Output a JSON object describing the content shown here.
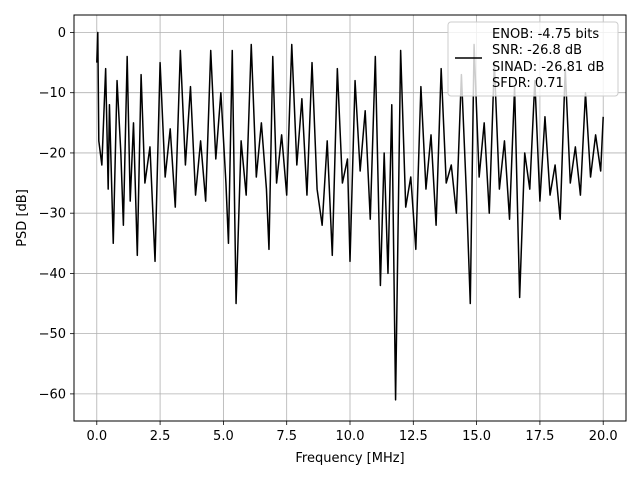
{
  "chart_data": {
    "type": "line",
    "title": "",
    "xlabel": "Frequency [MHz]",
    "ylabel": "PSD [dB]",
    "xlim": [
      -0.9,
      20.9
    ],
    "ylim": [
      -64.5,
      2.9
    ],
    "xticks": [
      0.0,
      2.5,
      5.0,
      7.5,
      10.0,
      12.5,
      15.0,
      17.5,
      20.0
    ],
    "xtick_labels": [
      "0.0",
      "2.5",
      "5.0",
      "7.5",
      "10.0",
      "12.5",
      "15.0",
      "17.5",
      "20.0"
    ],
    "yticks": [
      0,
      -10,
      -20,
      -30,
      -40,
      -50,
      -60
    ],
    "ytick_labels": [
      "0",
      "−10",
      "−20",
      "−30",
      "−40",
      "−50",
      "−60"
    ],
    "grid": true,
    "legend_position": "top-right",
    "legend_entries": [
      "ENOB: -4.75 bits",
      "SNR: -26.8 dB",
      "SINAD: -26.81 dB",
      "SFDR: 0.71"
    ],
    "series": [
      {
        "color": "#000000",
        "x": [
          0.0,
          0.04,
          0.08,
          0.2,
          0.35,
          0.45,
          0.5,
          0.65,
          0.8,
          0.95,
          1.05,
          1.2,
          1.32,
          1.45,
          1.6,
          1.75,
          1.9,
          2.1,
          2.3,
          2.5,
          2.7,
          2.9,
          3.1,
          3.3,
          3.5,
          3.7,
          3.9,
          4.1,
          4.3,
          4.5,
          4.7,
          4.9,
          5.1,
          5.2,
          5.35,
          5.5,
          5.7,
          5.9,
          6.1,
          6.3,
          6.5,
          6.7,
          6.8,
          6.95,
          7.1,
          7.3,
          7.5,
          7.7,
          7.9,
          8.1,
          8.3,
          8.5,
          8.7,
          8.9,
          9.1,
          9.3,
          9.5,
          9.7,
          9.9,
          10.0,
          10.2,
          10.4,
          10.6,
          10.8,
          11.0,
          11.2,
          11.35,
          11.5,
          11.65,
          11.8,
          12.0,
          12.2,
          12.4,
          12.6,
          12.8,
          13.0,
          13.2,
          13.4,
          13.6,
          13.8,
          14.0,
          14.2,
          14.4,
          14.6,
          14.75,
          14.9,
          15.1,
          15.3,
          15.5,
          15.7,
          15.9,
          16.1,
          16.3,
          16.5,
          16.7,
          16.9,
          17.1,
          17.3,
          17.5,
          17.7,
          17.9,
          18.1,
          18.3,
          18.5,
          18.7,
          18.9,
          19.1,
          19.3,
          19.5,
          19.7,
          19.9,
          20.0
        ],
        "y": [
          -5,
          0,
          -18,
          -22,
          -6,
          -26,
          -12,
          -35,
          -8,
          -20,
          -32,
          -4,
          -28,
          -15,
          -37,
          -7,
          -25,
          -19,
          -38,
          -5,
          -24,
          -16,
          -29,
          -3,
          -22,
          -9,
          -27,
          -18,
          -28,
          -3,
          -21,
          -10,
          -25,
          -35,
          -3,
          -45,
          -18,
          -27,
          -2,
          -24,
          -15,
          -26,
          -36,
          -4,
          -25,
          -17,
          -27,
          -2,
          -22,
          -11,
          -27,
          -5,
          -26,
          -32,
          -18,
          -37,
          -6,
          -25,
          -21,
          -38,
          -8,
          -23,
          -13,
          -31,
          -4,
          -42,
          -20,
          -40,
          -12,
          -61,
          -3,
          -29,
          -24,
          -36,
          -9,
          -26,
          -17,
          -32,
          -6,
          -25,
          -22,
          -30,
          -7,
          -27,
          -45,
          -2,
          -24,
          -15,
          -30,
          -5,
          -26,
          -18,
          -31,
          -9,
          -44,
          -20,
          -26,
          -8,
          -28,
          -14,
          -27,
          -22,
          -31,
          -6,
          -25,
          -19,
          -27,
          -10,
          -24,
          -17,
          -23,
          -14
        ]
      }
    ]
  }
}
